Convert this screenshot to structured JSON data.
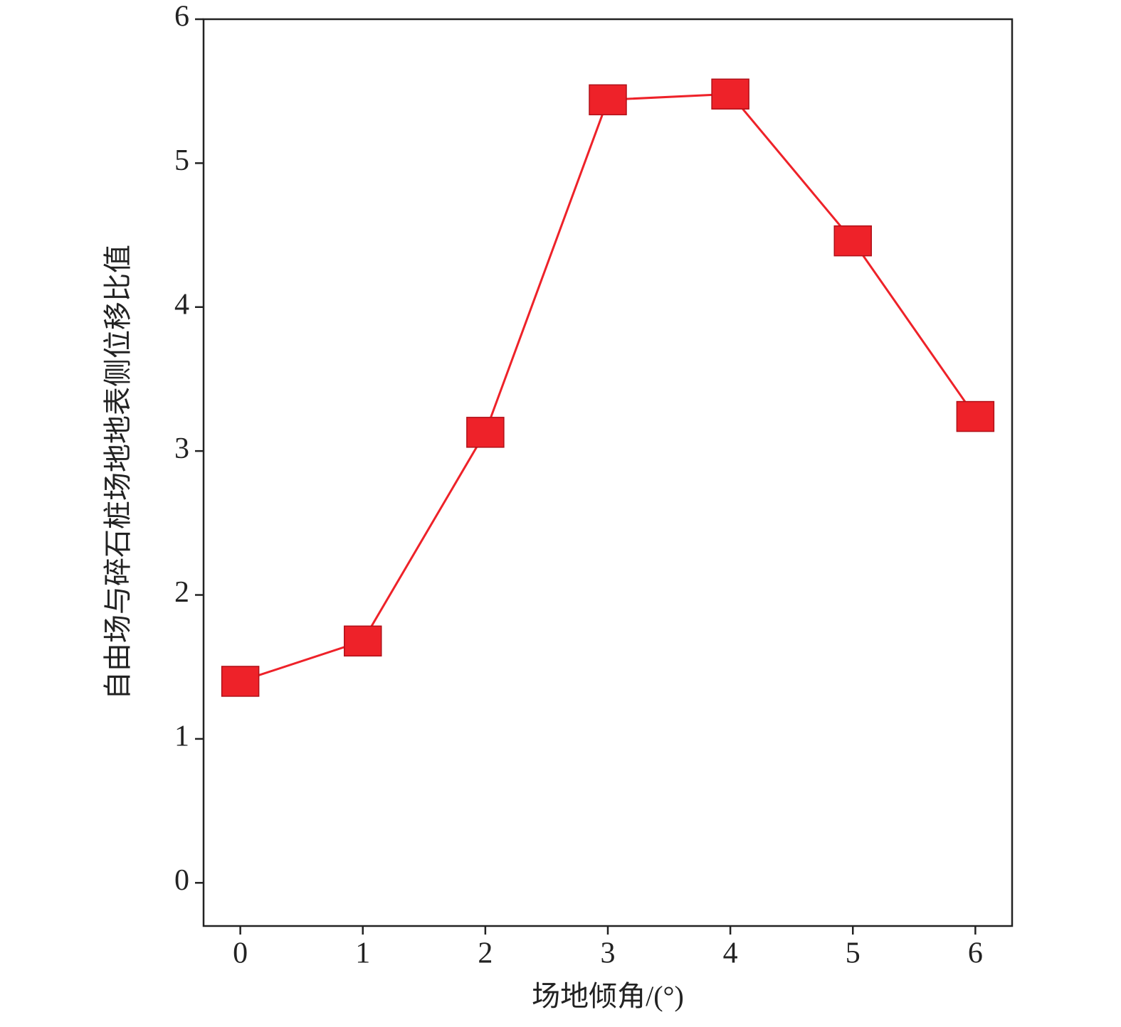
{
  "chart_data": {
    "type": "line",
    "x_label": "场地倾角/(°)",
    "y_label": "自由场与碎石桩场地地表侧位移比值",
    "x": [
      0,
      1,
      2,
      3,
      4,
      5,
      6
    ],
    "series": [
      {
        "color": "#ee2229",
        "values": [
          1.4,
          1.68,
          3.13,
          5.44,
          5.48,
          4.46,
          3.24
        ]
      }
    ],
    "xlim": [
      -0.3,
      6.3
    ],
    "xticks": [
      0,
      1,
      2,
      3,
      4,
      5,
      6
    ],
    "ylim": [
      -0.3,
      6
    ],
    "yticks": [
      0,
      1,
      2,
      3,
      4,
      5,
      6
    ],
    "grid": false
  }
}
